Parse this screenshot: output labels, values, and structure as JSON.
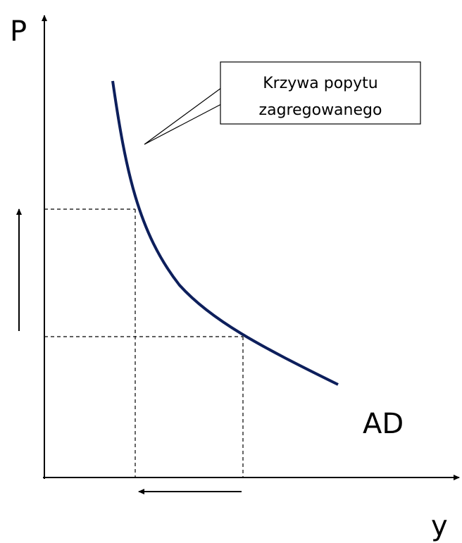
{
  "axes": {
    "y_label": "P",
    "x_label": "y"
  },
  "curve": {
    "label": "AD"
  },
  "callout": {
    "lines": [
      "Krzywa popytu",
      "zagregowanego"
    ]
  }
}
